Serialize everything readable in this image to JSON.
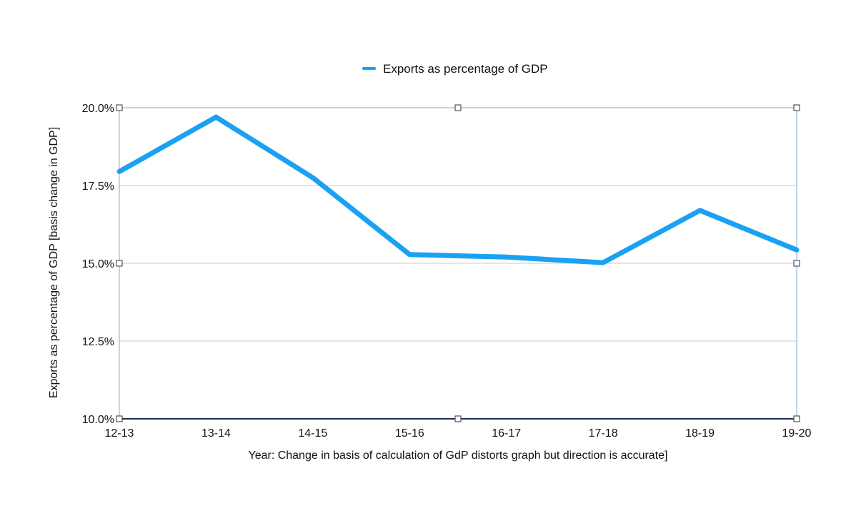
{
  "chart_data": {
    "type": "line",
    "title": "",
    "categories": [
      "12-13",
      "13-14",
      "14-15",
      "15-16",
      "16-17",
      "17-18",
      "18-19",
      "19-20"
    ],
    "series": [
      {
        "name": "Exports as percentage of GDP",
        "values": [
          17.95,
          19.7,
          17.75,
          15.28,
          15.2,
          15.02,
          16.7,
          15.43
        ],
        "color": "#1ba1f2"
      }
    ],
    "xlabel": "Year:  Change in basis of calculation of GdP distorts graph but direction is accurate]",
    "ylabel": "Exports as percentage of GDP [basis change in GDP]",
    "ylim": [
      10,
      20
    ],
    "yticks": [
      "10.0%",
      "12.5%",
      "15.0%",
      "17.5%",
      "20.0%"
    ],
    "ytick_values": [
      10,
      12.5,
      15,
      17.5,
      20
    ],
    "grid": true,
    "legend_position": "top-center",
    "colors": {
      "grid": "#c8c8c8",
      "frame": "#7fa6e8",
      "baseline": "#1c2f5a"
    }
  }
}
